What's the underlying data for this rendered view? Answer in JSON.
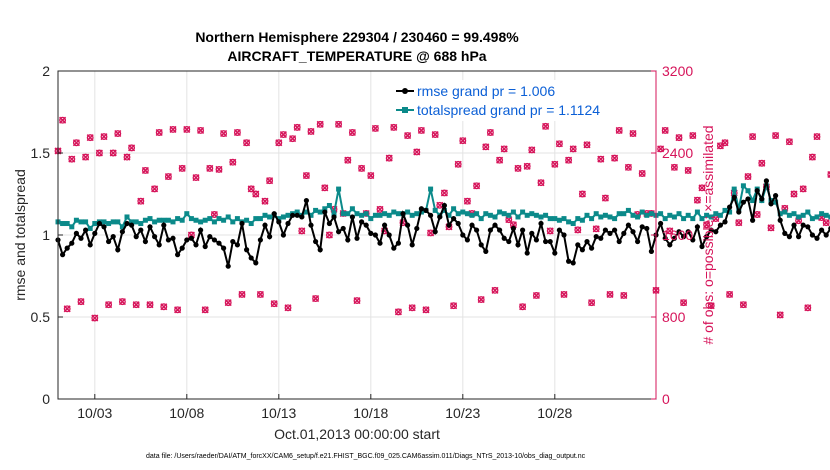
{
  "chart_data": {
    "type": "line",
    "title": "Northern Hemisphere 229304 / 230460 = 99.498%",
    "subtitle": "AIRCRAFT_TEMPERATURE @ 688 hPa",
    "xlabel": "Oct.01,2013 00:00:00 start",
    "ylabel_left": "rmse and totalspread",
    "ylabel_right": "# of obs: o=possible; ×=assimilated",
    "ylim_left": [
      0,
      2
    ],
    "yticks_left": [
      "0",
      "0.5",
      "1",
      "1.5",
      "2"
    ],
    "ylim_right": [
      0,
      3200
    ],
    "yticks_right": [
      "0",
      "800",
      "1600",
      "2400",
      "3200"
    ],
    "xlim": [
      1,
      33.5
    ],
    "xticks": [
      {
        "day": 3,
        "label": "10/03"
      },
      {
        "day": 8,
        "label": "10/08"
      },
      {
        "day": 13,
        "label": "10/13"
      },
      {
        "day": 18,
        "label": "10/18"
      },
      {
        "day": 23,
        "label": "10/23"
      },
      {
        "day": 28,
        "label": "10/28"
      }
    ],
    "grid": true,
    "legend_position": "top-right",
    "footer": "data file: /Users/raeder/DAI/ATM_forcXX/CAM6_setup/f.e21.FHIST_BGC.f09_025.CAM6assim.011/Diags_NTrS_2013-10/obs_diag_output.nc",
    "series": [
      {
        "name": "rmse",
        "legend": "rmse grand pr = 1.006",
        "color": "#000000",
        "start_day": 1,
        "step": 0.25,
        "values": [
          0.97,
          0.88,
          0.92,
          0.95,
          1.01,
          0.98,
          1.03,
          0.94,
          1.01,
          1.07,
          1.05,
          0.96,
          0.99,
          0.91,
          1.02,
          1.07,
          1.06,
          0.99,
          1.03,
          0.96,
          1.05,
          0.99,
          0.94,
          1.06,
          0.97,
          0.98,
          0.88,
          0.92,
          0.97,
          0.98,
          0.94,
          1.03,
          0.93,
          0.99,
          0.97,
          0.95,
          0.92,
          0.81,
          0.96,
          0.94,
          1.07,
          0.91,
          0.86,
          0.83,
          0.97,
          1.06,
          0.99,
          1.13,
          1.08,
          1.0,
          1.07,
          1.12,
          1.12,
          1.11,
          1.21,
          1.06,
          0.96,
          0.91,
          1.14,
          1.07,
          1.11,
          1.02,
          1.04,
          0.97,
          1.11,
          0.98,
          1.08,
          1.06,
          1.01,
          1.0,
          0.95,
          1.06,
          1.0,
          0.92,
          0.95,
          1.13,
          1.06,
          0.94,
          1.04,
          1.16,
          1.15,
          1.12,
          1.02,
          1.11,
          1.18,
          1.06,
          1.1,
          1.07,
          1.0,
          0.97,
          1.06,
          1.03,
          0.94,
          0.9,
          1.03,
          1.06,
          1.03,
          0.98,
          0.96,
          1.04,
          0.94,
          1.03,
          0.89,
          1.01,
          0.97,
          1.07,
          0.96,
          0.96,
          0.89,
          1.03,
          1.0,
          0.84,
          0.83,
          0.94,
          0.91,
          0.96,
          0.92,
          0.99,
          0.98,
          1.03,
          1.01,
          1.03,
          0.96,
          1.01,
          1.06,
          1.02,
          0.96,
          1.05,
          1.04,
          0.9,
          1.0,
          1.07,
          0.98,
          0.94,
          0.98,
          1.02,
          0.99,
          1.02,
          0.97,
          1.05,
          0.93,
          0.99,
          1.03,
          1.02,
          1.06,
          1.08,
          1.17,
          1.23,
          1.14,
          1.2,
          1.22,
          1.09,
          1.27,
          1.22,
          1.33,
          1.19,
          1.24,
          1.09,
          1.01,
          0.99,
          1.06,
          0.99,
          1.06,
          1.05,
          1.0,
          0.98,
          1.03,
          1.0,
          1.04,
          1.06,
          1.03,
          1.0,
          1.08
        ]
      },
      {
        "name": "totalspread",
        "legend": "totalspread grand pr = 1.1124",
        "color": "#0b8a8a",
        "start_day": 1,
        "step": 0.25,
        "values": [
          1.08,
          1.07,
          1.07,
          1.05,
          1.09,
          1.08,
          1.08,
          1.04,
          1.07,
          1.08,
          1.08,
          1.07,
          1.08,
          1.08,
          1.05,
          1.11,
          1.08,
          1.08,
          1.07,
          1.09,
          1.1,
          1.08,
          1.09,
          1.09,
          1.09,
          1.08,
          1.1,
          1.09,
          1.13,
          1.1,
          1.09,
          1.08,
          1.09,
          1.1,
          1.08,
          1.1,
          1.09,
          1.11,
          1.08,
          1.1,
          1.08,
          1.09,
          1.07,
          1.1,
          1.1,
          1.12,
          1.11,
          1.12,
          1.1,
          1.11,
          1.12,
          1.13,
          1.14,
          1.12,
          1.14,
          1.12,
          1.15,
          1.14,
          1.16,
          1.18,
          1.13,
          1.28,
          1.13,
          1.13,
          1.16,
          1.13,
          1.12,
          1.13,
          1.1,
          1.12,
          1.12,
          1.13,
          1.12,
          1.14,
          1.13,
          1.13,
          1.14,
          1.12,
          1.13,
          1.14,
          1.15,
          1.28,
          1.15,
          1.12,
          1.15,
          1.12,
          1.16,
          1.13,
          1.14,
          1.13,
          1.12,
          1.13,
          1.1,
          1.13,
          1.12,
          1.11,
          1.14,
          1.13,
          1.12,
          1.14,
          1.11,
          1.14,
          1.12,
          1.13,
          1.12,
          1.11,
          1.12,
          1.1,
          1.1,
          1.09,
          1.1,
          1.08,
          1.07,
          1.1,
          1.09,
          1.12,
          1.1,
          1.13,
          1.11,
          1.12,
          1.11,
          1.1,
          1.13,
          1.13,
          1.15,
          1.12,
          1.11,
          1.14,
          1.12,
          1.13,
          1.12,
          1.13,
          1.1,
          1.12,
          1.11,
          1.13,
          1.1,
          1.12,
          1.1,
          1.14,
          1.1,
          1.12,
          1.11,
          1.13,
          1.12,
          1.15,
          1.14,
          1.28,
          1.16,
          1.3,
          1.27,
          1.21,
          1.28,
          1.21,
          1.3,
          1.21,
          1.2,
          1.13,
          1.14,
          1.12,
          1.13,
          1.11,
          1.12,
          1.14,
          1.1,
          1.11,
          1.13,
          1.12,
          1.11,
          1.12,
          1.1,
          1.11,
          1.1
        ]
      },
      {
        "name": "obs_counts",
        "legend": "",
        "color": "#d6145a",
        "axis": "right",
        "start_day": 1,
        "step": 0.25,
        "values": [
          2420,
          2720,
          880,
          2340,
          2500,
          950,
          2360,
          2550,
          790,
          2400,
          2560,
          920,
          2400,
          2590,
          950,
          2360,
          2450,
          920,
          1930,
          2230,
          920,
          2050,
          2600,
          900,
          2170,
          2630,
          870,
          2250,
          2630,
          1600,
          2160,
          2620,
          870,
          2250,
          1800,
          2240,
          2590,
          940,
          2310,
          2600,
          1020,
          2500,
          2050,
          2000,
          1020,
          1930,
          2130,
          930,
          2500,
          2580,
          890,
          2540,
          2650,
          1640,
          2180,
          2610,
          980,
          2680,
          2060,
          1600,
          1850,
          2680,
          1810,
          2330,
          2600,
          960,
          2250,
          1810,
          2180,
          2640,
          1850,
          1640,
          2350,
          2650,
          850,
          1720,
          2570,
          890,
          2410,
          2620,
          870,
          1620,
          2580,
          1890,
          2010,
          1680,
          910,
          2290,
          2520,
          1930,
          1810,
          2080,
          970,
          2460,
          2600,
          1060,
          2330,
          2440,
          1750,
          1700,
          2250,
          900,
          2270,
          2430,
          1010,
          2110,
          2660,
          1640,
          2290,
          2490,
          1020,
          2330,
          2440,
          1650,
          2000,
          2480,
          940,
          1660,
          2340,
          1960,
          1020,
          2350,
          2620,
          1010,
          2260,
          2590,
          1800,
          2200,
          1810,
          1810,
          1060,
          2440,
          2620,
          1640,
          2260,
          2550,
          940,
          2230,
          2570,
          1940,
          2060,
          1700,
          910,
          1760,
          2470,
          2500,
          1020,
          2010,
          1720,
          920,
          2170,
          2560,
          1800,
          2300,
          2070,
          1670,
          2570,
          820,
          1860,
          2510,
          2000,
          1740,
          2050,
          890,
          2360,
          2560,
          1770,
          1720,
          2190,
          840,
          2450,
          1600,
          0
        ]
      }
    ]
  }
}
